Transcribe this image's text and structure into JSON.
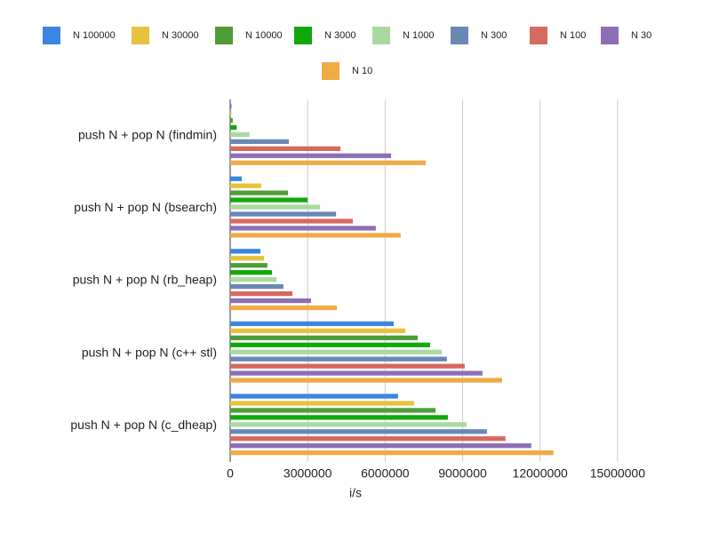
{
  "chart_data": {
    "type": "hbar",
    "x_label": "i/s",
    "categories": [
      "push N + pop N (findmin)",
      "push N + pop N (bsearch)",
      "push N + pop N (rb_heap)",
      "push N + pop N (c++ stl)",
      "push N + pop N (c_dheap)"
    ],
    "series": [
      {
        "name": "N 100000",
        "color": "#3a86e0",
        "values": [
          50000,
          450000,
          1170000,
          6330000,
          6500000
        ]
      },
      {
        "name": "N 30000",
        "color": "#e5c33e",
        "values": [
          50000,
          1200000,
          1310000,
          6780000,
          7120000
        ]
      },
      {
        "name": "N 10000",
        "color": "#4d9e37",
        "values": [
          100000,
          2240000,
          1440000,
          7260000,
          7950000
        ]
      },
      {
        "name": "N 3000",
        "color": "#12a80c",
        "values": [
          250000,
          3000000,
          1620000,
          7740000,
          8430000
        ]
      },
      {
        "name": "N 1000",
        "color": "#aad9a0",
        "values": [
          750000,
          3480000,
          1790000,
          8190000,
          9150000
        ]
      },
      {
        "name": "N 300",
        "color": "#6a88b4",
        "values": [
          2270000,
          4100000,
          2060000,
          8390000,
          9940000
        ]
      },
      {
        "name": "N 100",
        "color": "#d66a5e",
        "values": [
          4270000,
          4750000,
          2410000,
          9080000,
          10660000
        ]
      },
      {
        "name": "N 30",
        "color": "#8d6fb5",
        "values": [
          6230000,
          5640000,
          3130000,
          9770000,
          11660000
        ]
      },
      {
        "name": "N 10",
        "color": "#f0ab46",
        "values": [
          7570000,
          6600000,
          4130000,
          10530000,
          12520000
        ]
      }
    ],
    "xlim": [
      0,
      17000000
    ],
    "xticks": [
      0,
      3000000,
      6000000,
      9000000,
      12000000,
      15000000
    ],
    "grid": true
  }
}
